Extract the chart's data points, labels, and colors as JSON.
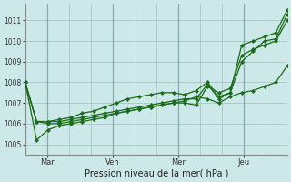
{
  "xlabel": "Pression niveau de la mer( hPa )",
  "ylim": [
    1004.5,
    1011.8
  ],
  "yticks": [
    1005,
    1006,
    1007,
    1008,
    1009,
    1010,
    1011
  ],
  "background_color": "#cce8e8",
  "grid_color": "#aacccc",
  "line_color": "#1a6b1a",
  "xtick_labels": [
    "Mar",
    "Ven",
    "Mer",
    "Jeu"
  ],
  "xtick_positions": [
    8,
    32,
    56,
    80
  ],
  "vgrid_positions": [
    8,
    16,
    24,
    32,
    40,
    48,
    56,
    64,
    72,
    80,
    88
  ],
  "series": [
    [
      1008.0,
      1006.1,
      1006.1,
      1006.2,
      1006.3,
      1006.5,
      1006.6,
      1006.8,
      1007.0,
      1007.2,
      1007.3,
      1007.4,
      1007.5,
      1007.5,
      1007.4,
      1007.6,
      1008.0,
      1007.3,
      1007.5,
      1009.0,
      1009.5,
      1010.0,
      1010.1,
      1011.3
    ],
    [
      1008.0,
      1006.1,
      1006.1,
      1006.1,
      1006.2,
      1006.3,
      1006.4,
      1006.5,
      1006.6,
      1006.7,
      1006.8,
      1006.9,
      1007.0,
      1007.1,
      1007.2,
      1007.2,
      1007.9,
      1007.2,
      1007.5,
      1009.8,
      1010.0,
      1010.2,
      1010.4,
      1011.5
    ],
    [
      1008.0,
      1006.1,
      1006.0,
      1006.0,
      1006.1,
      1006.2,
      1006.3,
      1006.4,
      1006.5,
      1006.6,
      1006.7,
      1006.8,
      1006.9,
      1007.0,
      1007.0,
      1006.9,
      1007.8,
      1007.5,
      1007.7,
      1009.3,
      1009.6,
      1009.8,
      1010.0,
      1011.0
    ],
    [
      1008.0,
      1005.2,
      1005.7,
      1005.9,
      1006.0,
      1006.1,
      1006.2,
      1006.3,
      1006.5,
      1006.6,
      1006.7,
      1006.8,
      1006.9,
      1007.0,
      1007.1,
      1007.3,
      1007.2,
      1007.0,
      1007.3,
      1007.5,
      1007.6,
      1007.8,
      1008.0,
      1008.8
    ]
  ],
  "n_points": 24,
  "xlim": [
    0,
    96
  ]
}
